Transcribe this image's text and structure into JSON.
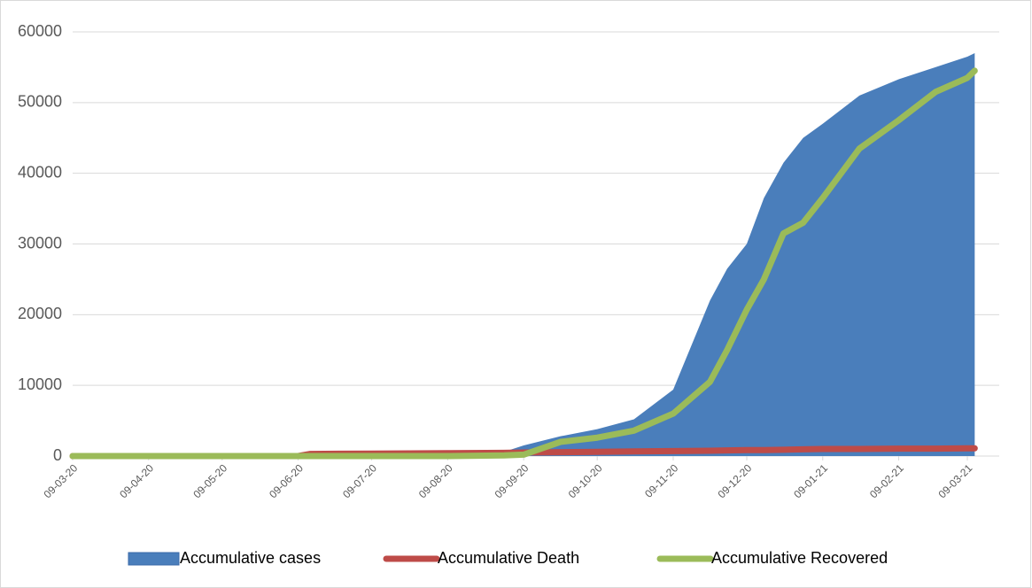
{
  "chart_data": {
    "type": "area-line",
    "x": [
      "09-03-20",
      "09-04-20",
      "09-05-20",
      "09-06-20",
      "14-06-20",
      "09-07-20",
      "09-08-20",
      "01-09-20",
      "09-09-20",
      "24-09-20",
      "09-10-20",
      "24-10-20",
      "09-11-20",
      "24-11-20",
      "01-12-20",
      "09-12-20",
      "16-12-20",
      "24-12-20",
      "01-01-21",
      "09-01-21",
      "24-01-21",
      "09-02-21",
      "24-02-21",
      "09-03-21",
      "12-03-21"
    ],
    "series": [
      {
        "name": "Accumulative cases",
        "type": "area",
        "color": "#4a7ebb",
        "values": [
          0,
          10,
          50,
          150,
          200,
          300,
          400,
          600,
          1500,
          2800,
          3800,
          5200,
          9400,
          22000,
          26500,
          30000,
          36500,
          41500,
          45000,
          47000,
          51000,
          53300,
          55000,
          56500,
          57000
        ]
      },
      {
        "name": "Accumulative Death",
        "type": "line",
        "color": "#be4b48",
        "values": [
          0,
          0,
          0,
          0,
          300,
          350,
          400,
          450,
          500,
          550,
          600,
          650,
          700,
          750,
          800,
          850,
          850,
          900,
          950,
          1000,
          1000,
          1050,
          1050,
          1100,
          1100
        ]
      },
      {
        "name": "Accumulative Recovered",
        "type": "line",
        "color": "#9bbb59",
        "values": [
          0,
          0,
          0,
          0,
          0,
          0,
          0,
          100,
          200,
          2000,
          2600,
          3600,
          6000,
          10500,
          15000,
          20700,
          25000,
          31500,
          33000,
          36500,
          43500,
          47500,
          51500,
          53500,
          54500
        ]
      }
    ],
    "xlim": [
      "09-03-20",
      "22-03-21"
    ],
    "xticks": [
      "09-03-20",
      "09-04-20",
      "09-05-20",
      "09-06-20",
      "09-07-20",
      "09-08-20",
      "09-09-20",
      "09-10-20",
      "09-11-20",
      "09-12-20",
      "09-01-21",
      "09-02-21",
      "09-03-21"
    ],
    "ylim": [
      0,
      60000
    ],
    "yticks": [
      0,
      10000,
      20000,
      30000,
      40000,
      50000,
      60000
    ],
    "grid": true,
    "legend": "bottom"
  }
}
